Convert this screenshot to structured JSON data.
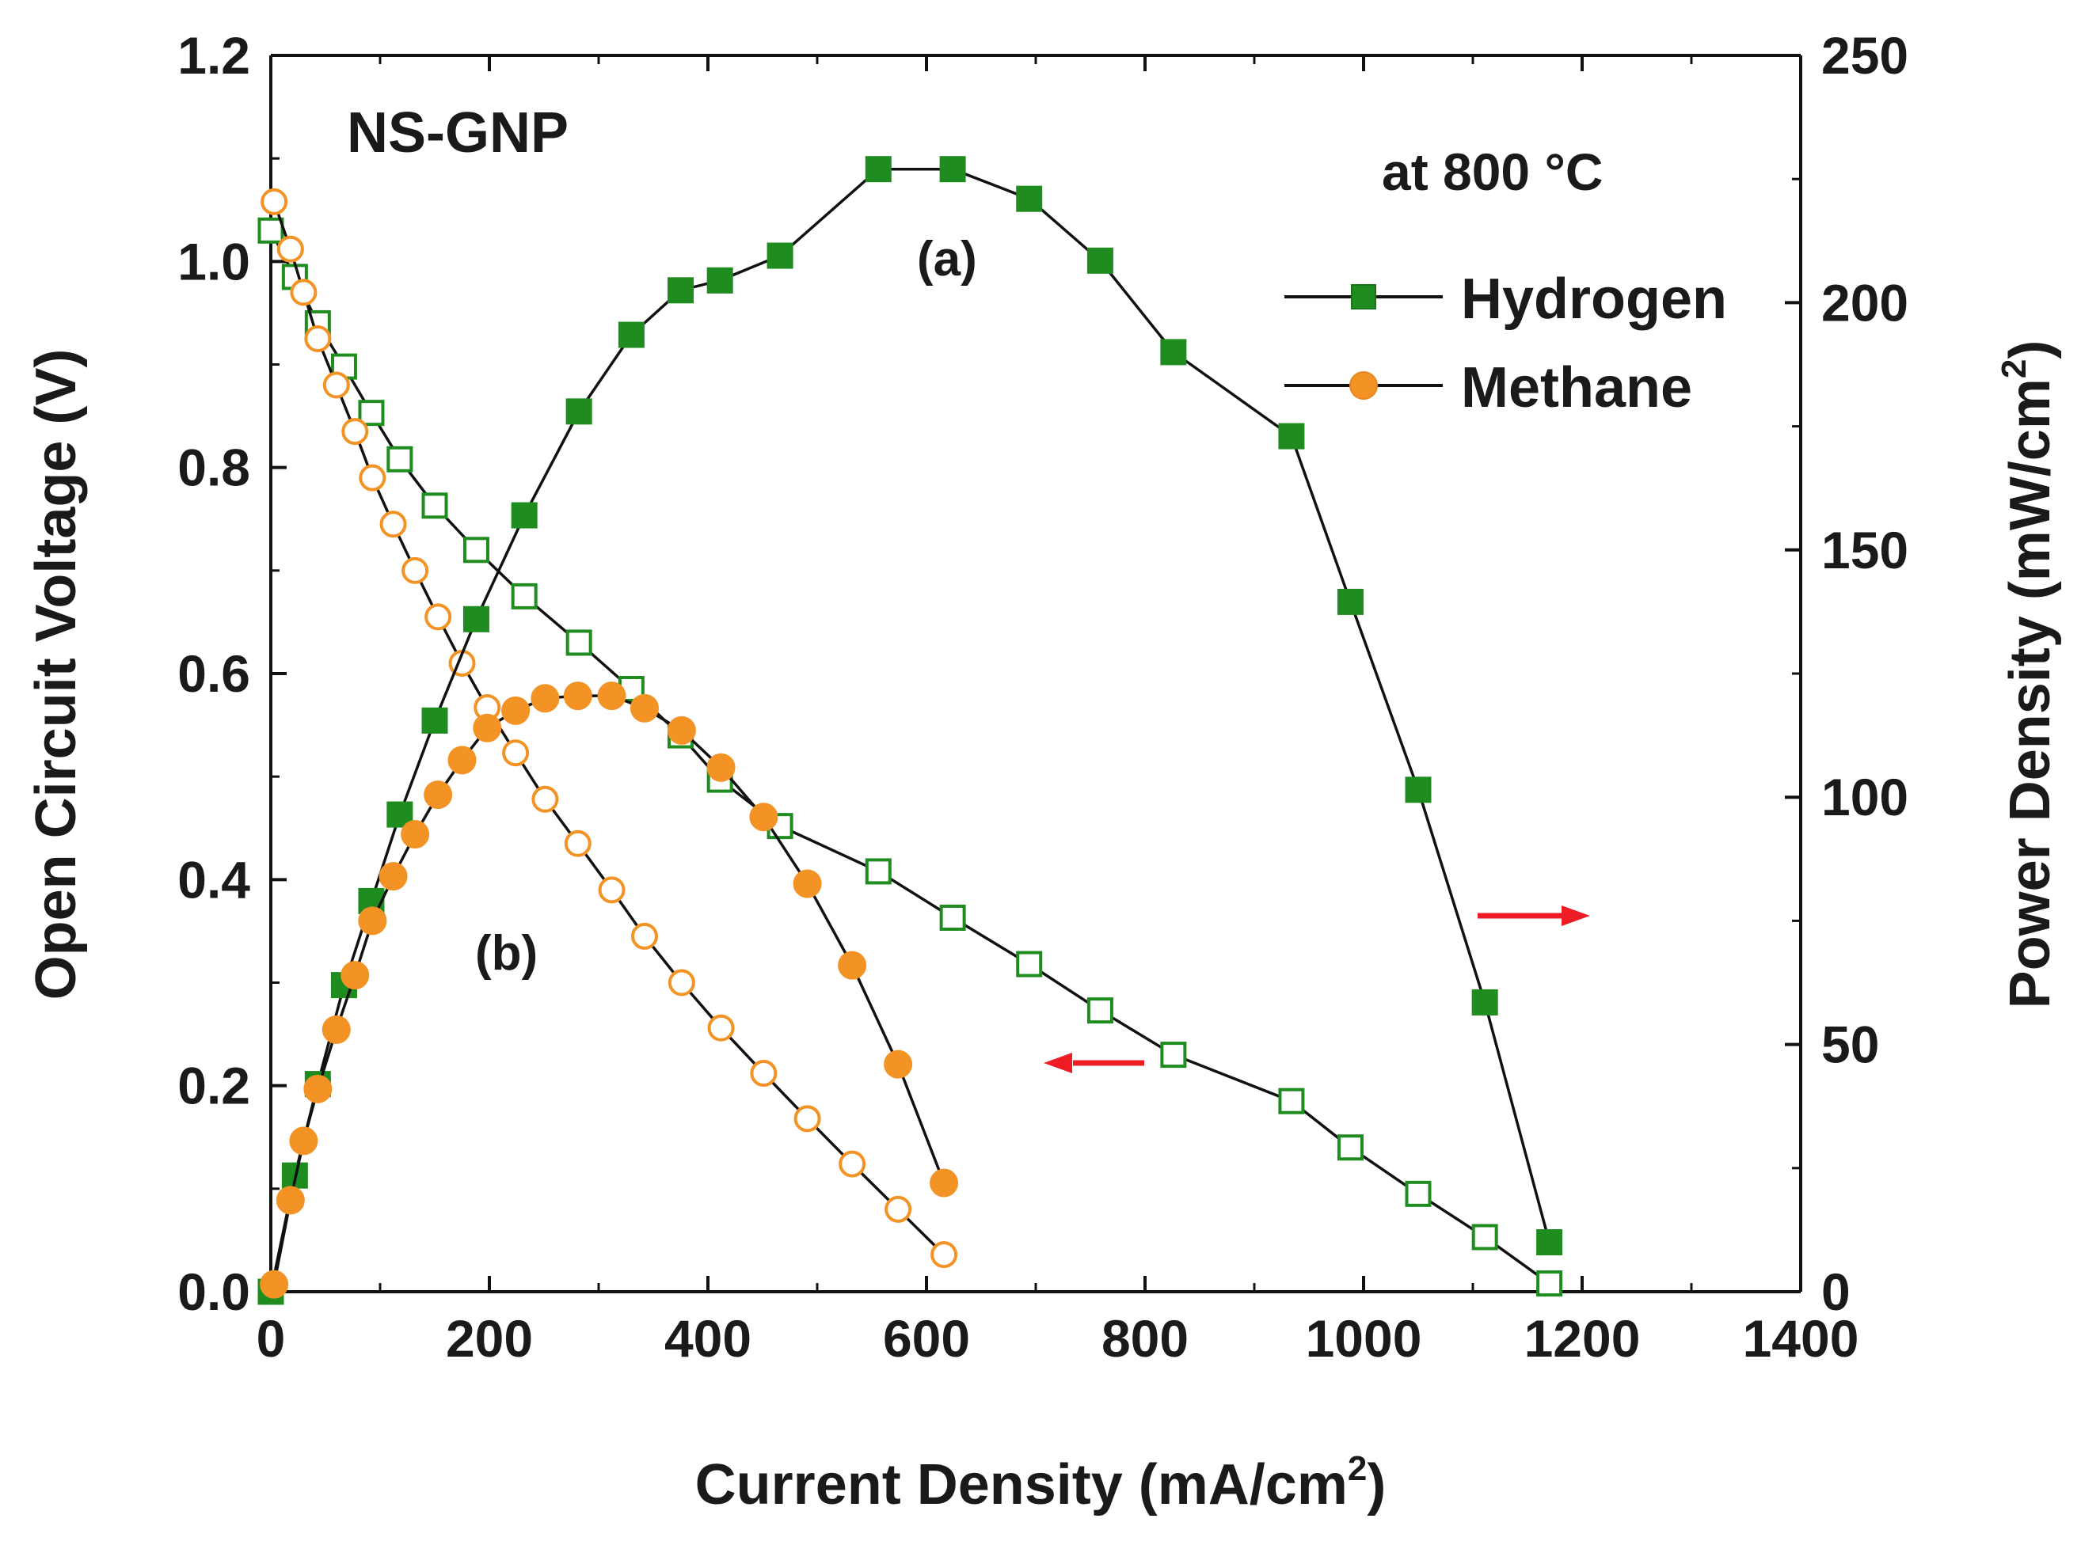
{
  "chart_data": {
    "type": "line",
    "annotation_main": "NS-GNP",
    "annotation_temp": "at 800 °C",
    "label_a": "(a)",
    "label_b": "(b)",
    "xlabel": "Current Density (mA/cm",
    "xlabel_sup": "2",
    "xlabel_end": ")",
    "ylabel_left": "Open Circuit Voltage (V)",
    "ylabel_right": "Power Density (mW/cm",
    "ylabel_right_sup": "2",
    "ylabel_right_end": ")",
    "xlim": [
      0,
      1400
    ],
    "ylim_left": [
      0,
      1.2
    ],
    "ylim_right": [
      0,
      250
    ],
    "x_ticks": [
      "0",
      "200",
      "400",
      "600",
      "800",
      "1000",
      "1200",
      "1400"
    ],
    "y_left_ticks": [
      "0.0",
      "0.2",
      "0.4",
      "0.6",
      "0.8",
      "1.0",
      "1.2"
    ],
    "y_right_ticks": [
      "0",
      "50",
      "100",
      "150",
      "200",
      "250"
    ],
    "legend": {
      "placement": "top-right",
      "entries": [
        {
          "name": "Hydrogen",
          "color": "#1e8c1e",
          "marker": "square"
        },
        {
          "name": "Methane",
          "color": "#f39325",
          "marker": "circle"
        }
      ]
    },
    "grid": false,
    "series": [
      {
        "name": "Hydrogen",
        "role": "voltage",
        "axis": "left",
        "color": "#1e8c1e",
        "marker": "square",
        "filled": false,
        "x": [
          0,
          22,
          43,
          67,
          92,
          118,
          150,
          188,
          232,
          282,
          330,
          375,
          411,
          466,
          556,
          624,
          694,
          759,
          826,
          934,
          988,
          1050,
          1111,
          1170
        ],
        "y": [
          1.03,
          0.985,
          0.94,
          0.898,
          0.853,
          0.808,
          0.763,
          0.72,
          0.675,
          0.63,
          0.585,
          0.54,
          0.497,
          0.452,
          0.408,
          0.363,
          0.318,
          0.273,
          0.23,
          0.185,
          0.14,
          0.095,
          0.053,
          0.008
        ]
      },
      {
        "name": "Methane",
        "role": "voltage",
        "axis": "left",
        "color": "#f39325",
        "marker": "circle",
        "filled": false,
        "x": [
          3,
          18,
          30,
          43,
          60,
          77,
          93,
          112,
          132,
          153,
          175,
          198,
          224,
          251,
          281,
          312,
          342,
          376,
          412,
          451,
          491,
          532,
          574,
          616
        ],
        "y": [
          1.058,
          1.012,
          0.97,
          0.925,
          0.88,
          0.835,
          0.79,
          0.745,
          0.7,
          0.655,
          0.61,
          0.567,
          0.523,
          0.478,
          0.435,
          0.39,
          0.345,
          0.3,
          0.256,
          0.212,
          0.168,
          0.124,
          0.08,
          0.036
        ]
      },
      {
        "name": "Hydrogen",
        "role": "power",
        "axis": "right",
        "color": "#1e8c1e",
        "marker": "square",
        "filled": true,
        "x": [
          0,
          22,
          43,
          67,
          92,
          118,
          150,
          188,
          232,
          282,
          330,
          375,
          411,
          466,
          556,
          624,
          694,
          759,
          826,
          934,
          988,
          1050,
          1111,
          1170
        ],
        "y": [
          0,
          23.5,
          42,
          62,
          79,
          96.5,
          115.5,
          136,
          157,
          178,
          193.5,
          202.5,
          204.5,
          209.5,
          227,
          227,
          221,
          208.5,
          190,
          173,
          139.5,
          101.5,
          58.5,
          10
        ]
      },
      {
        "name": "Methane",
        "role": "power",
        "axis": "right",
        "color": "#f39325",
        "marker": "circle",
        "filled": true,
        "x": [
          3,
          18,
          30,
          43,
          60,
          77,
          93,
          112,
          132,
          153,
          175,
          198,
          224,
          251,
          281,
          312,
          342,
          376,
          412,
          451,
          491,
          532,
          574,
          616
        ],
        "y": [
          1.5,
          18.5,
          30.5,
          41,
          53,
          64,
          75,
          84,
          92.5,
          100.5,
          107.5,
          114,
          117.5,
          120,
          120.5,
          120.5,
          118,
          113.5,
          106,
          96,
          82.5,
          66,
          46,
          22
        ]
      }
    ]
  }
}
